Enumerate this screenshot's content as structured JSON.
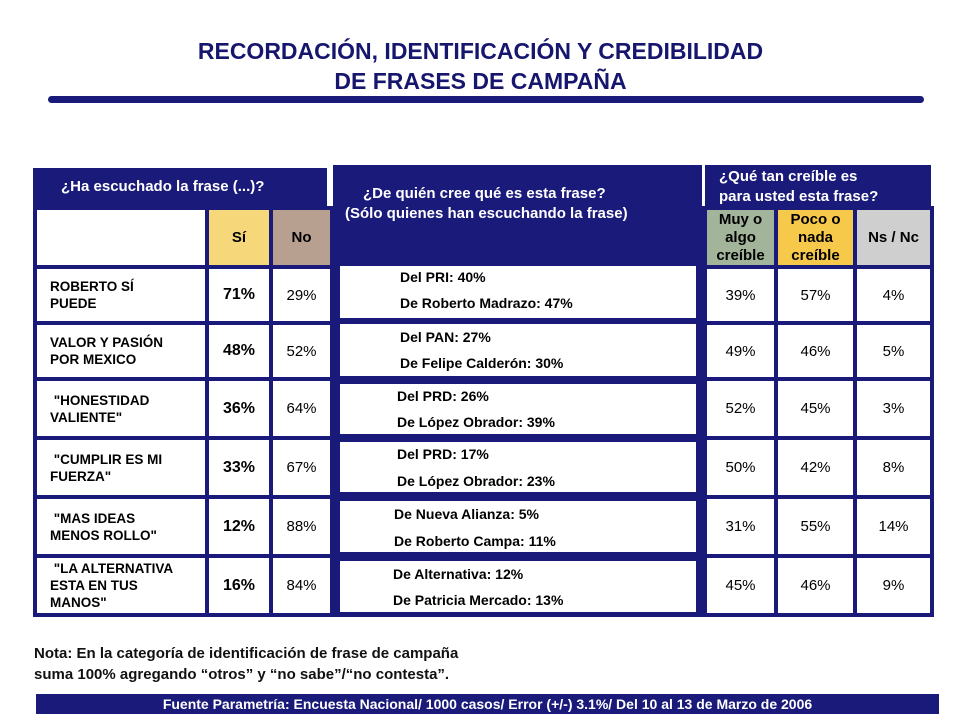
{
  "title": {
    "line1": "RECORDACIÓN, IDENTIFICACIÓN Y CREDIBILIDAD",
    "line2": "DE FRASES DE CAMPAÑA"
  },
  "headers": {
    "heard": "¿Ha escuchado la frase (...)?",
    "who_line1": "¿De quién cree qué es esta frase?",
    "who_line2": "(Sólo quienes han escuchando la frase)",
    "cred_line1": "¿Qué tan creíble es",
    "cred_line2": "para usted esta frase?"
  },
  "columns": {
    "si": "Sí",
    "no": "No",
    "muy": [
      "Muy o",
      "algo",
      "creíble"
    ],
    "poco": [
      "Poco o",
      "nada",
      "creíble"
    ],
    "nsnc": "Ns / Nc"
  },
  "colors": {
    "navy": "#1a1a7a",
    "si": "#f6d77a",
    "no": "#b8a090",
    "muy": "#a2b49a",
    "poco": "#f7c94a",
    "nsnc": "#cfcfcf"
  },
  "rows": [
    {
      "phrase": [
        "ROBERTO SÍ",
        "PUEDE"
      ],
      "si": "71%",
      "no": "29%",
      "who1": "Del PRI: 40%",
      "who2": "De Roberto Madrazo: 47%",
      "muy": "39%",
      "poco": "57%",
      "nsnc": "4%"
    },
    {
      "phrase": [
        "VALOR Y PASIÓN",
        "POR MEXICO"
      ],
      "si": "48%",
      "no": "52%",
      "who1": "Del PAN: 27%",
      "who2": "De Felipe Calderón: 30%",
      "muy": "49%",
      "poco": "46%",
      "nsnc": "5%"
    },
    {
      "phrase": [
        " \"HONESTIDAD",
        "VALIENTE\""
      ],
      "si": "36%",
      "no": "64%",
      "who1": "Del PRD: 26%",
      "who2": "De López Obrador: 39%",
      "muy": "52%",
      "poco": "45%",
      "nsnc": "3%"
    },
    {
      "phrase": [
        " \"CUMPLIR ES MI",
        "FUERZA\""
      ],
      "si": "33%",
      "no": "67%",
      "who1": "Del PRD: 17%",
      "who2": "De López Obrador: 23%",
      "muy": "50%",
      "poco": "42%",
      "nsnc": "8%"
    },
    {
      "phrase": [
        " \"MAS IDEAS",
        "MENOS ROLLO\""
      ],
      "si": "12%",
      "no": "88%",
      "who1": "De Nueva Alianza: 5%",
      "who2": "De Roberto Campa: 11%",
      "muy": "31%",
      "poco": "55%",
      "nsnc": "14%"
    },
    {
      "phrase": [
        " \"LA ALTERNATIVA",
        "ESTA EN TUS",
        "MANOS\""
      ],
      "si": "16%",
      "no": "84%",
      "who1": "De Alternativa: 12%",
      "who2": "De Patricia Mercado: 13%",
      "muy": "45%",
      "poco": "46%",
      "nsnc": "9%"
    }
  ],
  "note": {
    "line1": "Nota: En la categoría de identificación de frase de campaña",
    "line2": "suma 100% agregando “otros” y “no sabe”/“no contesta”."
  },
  "source": "Fuente Parametría: Encuesta Nacional/ 1000 casos/ Error (+/-) 3.1%/ Del 10 al 13 de Marzo  de 2006"
}
